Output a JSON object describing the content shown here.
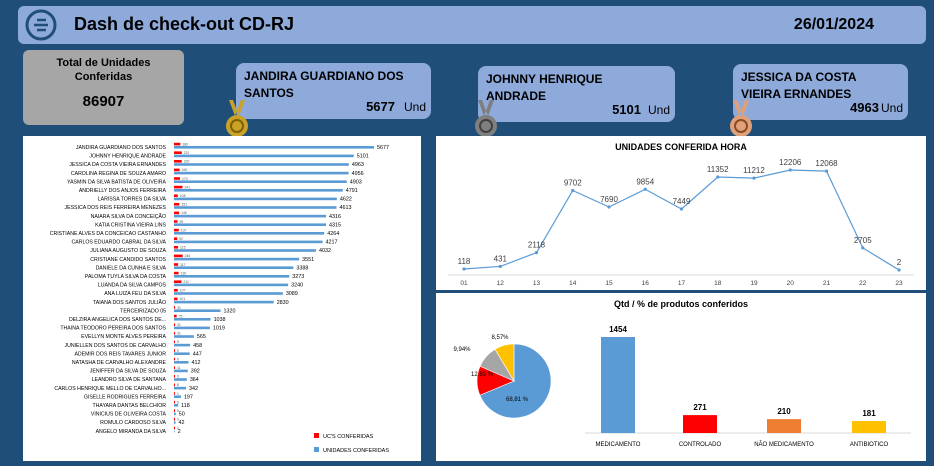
{
  "header": {
    "title": "Dash de check-out CD-RJ",
    "date": "26/01/2024"
  },
  "total": {
    "label": "Total de Unidades Conferidas",
    "value": "86907"
  },
  "top3": [
    {
      "name": "JANDIRA GUARDIANO DOS SANTOS",
      "value": "5677",
      "unit": "Und",
      "medal_color": "#c9a227"
    },
    {
      "name": "JOHNNY HENRIQUE ANDRADE",
      "value": "5101",
      "unit": "Und",
      "medal_color": "#7f7f7f"
    },
    {
      "name": "JESSICA DA COSTA VIEIRA ERNANDES",
      "value": "4963",
      "unit": "Und",
      "medal_color": "#e0a07a"
    }
  ],
  "chart_data": [
    {
      "type": "bar",
      "orientation": "horizontal",
      "categories": [
        "JANDIRA GUARDIANO DOS SANTOS",
        "JOHNNY HENRIQUE ANDRADE",
        "JESSICA DA COSTA VIEIRA ERNANDES",
        "CAROLINA REGINA DE SOUZA AMARO",
        "YASMIN DA SILVA BATISTA DE OLIVEIRA",
        "ANDRIELLY DOS ANJOS FERREIRA",
        "LARISSA TORRES DA SILVA",
        "JESSICA DOS REIS FERREIRA MENEZES",
        "NAIARA SILVA DA CONCEIÇÃO",
        "KATIA CRISTINA VIEIRA LINS",
        "CRISTIANE ALVES DA CONCEICAO CASTANHO",
        "CARLOS EDUARDO CABRAL DA SILVA",
        "JULIANA AUGUSTO DE SOUZA",
        "CRISTIANE CANDIDO SANTOS",
        "DANIELE DA CUNHA E SILVA",
        "PALOMA TUYLA SILVA DA COSTA",
        "LUANDA DA SILVA CAMPOS",
        "ANA LUIZA FEU DA SILVA",
        "TAIANA DOS SANTOS JULIÃO",
        "TERCEIRIZADO 05",
        "DELZIRA ANGELICA DOS SANTOS DE...",
        "THAINA TEODORO PEREIRA DOS SANTOS",
        "EVELLYN MONTE ALVES PEREIRA",
        "JUNIELLEN DOS SANTOS DE CARVALHO",
        "ADEMIR DOS REIS TAVARES JUNIOR",
        "NATASHA DE CARVALHO ALEXANDRE",
        "JENIFFER DA SILVA DE SOUZA",
        "LEANDRO SILVA DE SANTANA",
        "CARLOS HENRIQUE MELLO DE CARVALHO...",
        "GISELLE RODRIGUES FERREIRA",
        "THAYARA DANTAS BELCHIOR",
        "VINICIUS DE OLIVEIRA COSTA",
        "ROMULO CARDOSO SILVA",
        "ANGELO MIRANDA DA SILVA"
      ],
      "series": [
        {
          "name": "UC'S CONFERIDAS",
          "color": "#ff0000",
          "values": [
            180,
            221,
            220,
            160,
            170,
            241,
            108,
            151,
            146,
            99,
            137,
            92,
            115,
            246,
            117,
            130,
            211,
            107,
            101,
            31,
            75,
            31,
            31,
            9,
            9,
            9,
            11,
            9,
            8,
            1,
            6,
            5,
            3,
            1
          ],
          "labels": [
            "180",
            "221",
            "220",
            "160",
            "170",
            "241",
            "108",
            "151",
            "146",
            "99",
            "137",
            "92",
            "115",
            "246",
            "117",
            "130",
            "211",
            "107",
            "101",
            "31",
            "75",
            "31",
            "31",
            "9",
            "9",
            "9",
            "11",
            "9",
            "8",
            "1",
            "6",
            "5",
            "3",
            "1"
          ]
        },
        {
          "name": "UNIDADES CONFERIDAS",
          "color": "#5b9bd5",
          "values": [
            5677,
            5101,
            4963,
            4956,
            4903,
            4791,
            4622,
            4613,
            4316,
            4315,
            4264,
            4217,
            4032,
            3551,
            3388,
            3273,
            3240,
            3089,
            2830,
            1320,
            1038,
            1019,
            565,
            458,
            447,
            412,
            392,
            364,
            342,
            197,
            118,
            50,
            42,
            2
          ],
          "labels": [
            "5677",
            "5101",
            "4963",
            "4956",
            "4903",
            "4791",
            "4622",
            "4613",
            "4316",
            "4315",
            "4264",
            "4217",
            "4032",
            "3551",
            "3388",
            "3273",
            "3240",
            "3089",
            "2830",
            "1320",
            "1038",
            "1019",
            "565",
            "458",
            "447",
            "412",
            "392",
            "364",
            "342",
            "197",
            "118",
            "50",
            "42",
            "2"
          ]
        }
      ]
    },
    {
      "type": "line",
      "title": "UNIDADES CONFERIDA HORA",
      "x": [
        "01",
        "12",
        "13",
        "14",
        "15",
        "16",
        "17",
        "18",
        "19",
        "20",
        "21",
        "22",
        "23"
      ],
      "values": [
        118,
        431,
        2118,
        9702,
        7690,
        9854,
        7449,
        11352,
        11212,
        12206,
        12068,
        2705,
        2
      ],
      "color": "#5b9bd5"
    },
    {
      "type": "pie",
      "title": "Qtd / % de produtos conferidos",
      "slices": [
        {
          "label": "68,81 %",
          "value": 68.81,
          "color": "#5b9bd5"
        },
        {
          "label": "12,83 %",
          "value": 12.83,
          "color": "#ff0000"
        },
        {
          "label": "9,94%",
          "value": 9.94,
          "color": "#a6a6a6"
        },
        {
          "label": "8,57%",
          "value": 8.57,
          "color": "#ffc000"
        }
      ]
    },
    {
      "type": "bar",
      "categories": [
        "MEDICAMENTO",
        "CONTROLADO",
        "NÃO MEDICAMENTO",
        "ANTIBIOTICO"
      ],
      "values": [
        1454,
        271,
        210,
        181
      ],
      "labels": [
        "1454",
        "271",
        "210",
        "181"
      ],
      "colors": [
        "#5b9bd5",
        "#ff0000",
        "#ed7d31",
        "#ffc000"
      ]
    }
  ]
}
